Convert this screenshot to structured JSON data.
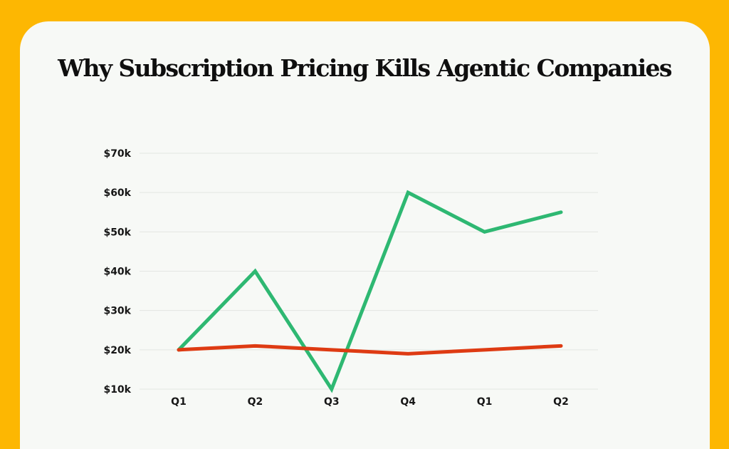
{
  "colors": {
    "background": "#FDB702",
    "card": "#F7F9F6",
    "series_green": "#2EB872",
    "series_red": "#DE3B13"
  },
  "chart_data": {
    "type": "line",
    "title": "Why Subscription Pricing Kills Agentic Companies",
    "xlabel": "",
    "ylabel": "",
    "categories": [
      "Q1",
      "Q2",
      "Q3",
      "Q4",
      "Q1",
      "Q2"
    ],
    "y_ticks": [
      10,
      20,
      30,
      40,
      50,
      60,
      70
    ],
    "y_tick_labels": [
      "$10k",
      "$20k",
      "$30k",
      "$40k",
      "$50k",
      "$60k",
      "$70k"
    ],
    "ylim": [
      10,
      70
    ],
    "grid": true,
    "legend": "none",
    "series": [
      {
        "color": "#2EB872",
        "values": [
          20,
          40,
          10,
          60,
          50,
          55
        ]
      },
      {
        "color": "#DE3B13",
        "values": [
          20,
          21,
          20,
          19,
          20,
          21
        ]
      }
    ]
  }
}
